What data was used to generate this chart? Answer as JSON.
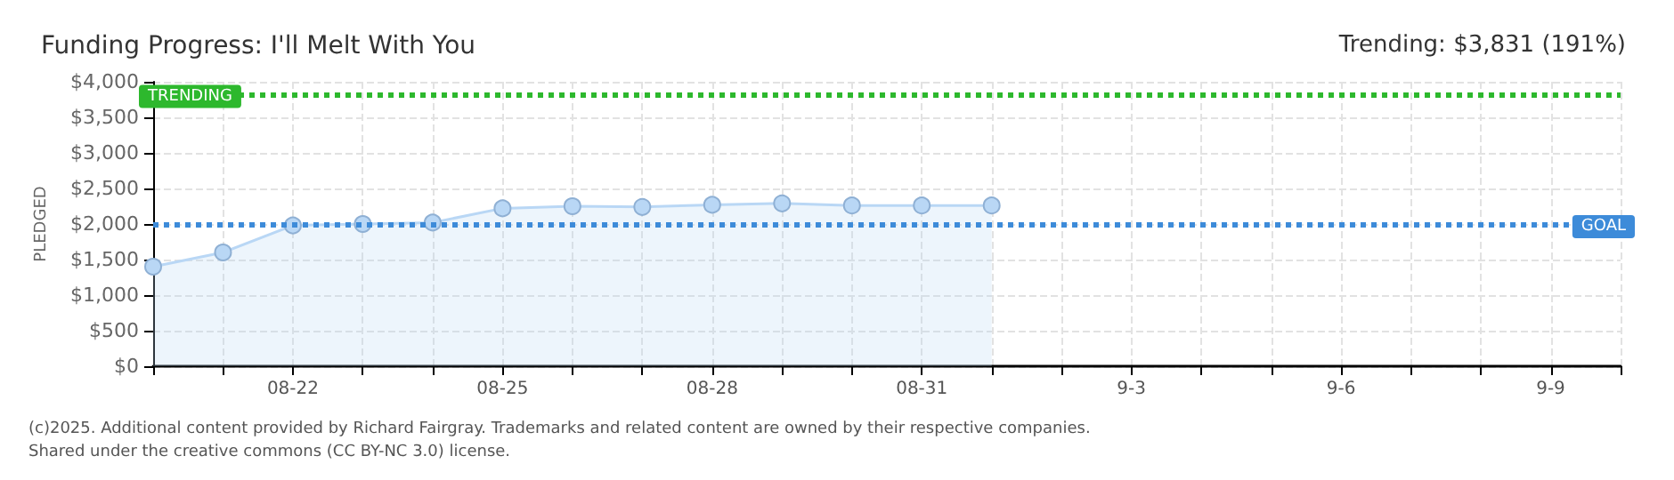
{
  "chart_data": {
    "type": "area",
    "title": "Funding Progress: I'll Melt With You",
    "subtitle": "Trending: $3,831 (191%)",
    "ylabel": "PLEDGED",
    "categories": [
      null,
      null,
      "08-22",
      null,
      null,
      "08-25",
      null,
      null,
      "08-28",
      null,
      null,
      "08-31",
      null,
      null,
      "9-3",
      null,
      null,
      "9-6",
      null,
      null,
      "9-9",
      null
    ],
    "series": [
      {
        "color": "#b9d7f5",
        "values": [
          1400,
          1600,
          1980,
          2000,
          2020,
          2220,
          2250,
          2240,
          2270,
          2290,
          2260,
          2260,
          2260,
          null,
          null,
          null,
          null,
          null,
          null,
          null,
          null,
          null
        ]
      }
    ],
    "ylim": [
      0,
      4000
    ],
    "yticks": [
      {
        "value": 0,
        "label": "$0"
      },
      {
        "value": 500,
        "label": "$500"
      },
      {
        "value": 1000,
        "label": "$1,000"
      },
      {
        "value": 1500,
        "label": "$1,500"
      },
      {
        "value": 2000,
        "label": "$2,000"
      },
      {
        "value": 2500,
        "label": "$2,500"
      },
      {
        "value": 3000,
        "label": "$3,000"
      },
      {
        "value": 3500,
        "label": "$3,500"
      },
      {
        "value": 4000,
        "label": "$4,000"
      }
    ],
    "ref_lines": [
      {
        "axis": "y",
        "value": 3831,
        "label": "TRENDING",
        "color": "#2db82d",
        "line_style": "dotted"
      },
      {
        "axis": "y",
        "value": 2000,
        "label": "GOAL",
        "color": "#3d8bd9",
        "line_style": "dotted"
      }
    ],
    "annotations": [
      "(c)2025. Additional content provided by Richard Fairgray. Trademarks and related content are owned by their respective companies.",
      "Shared under the creative commons (CC BY-NC 3.0) license."
    ],
    "grid": true,
    "marker": "circle"
  }
}
